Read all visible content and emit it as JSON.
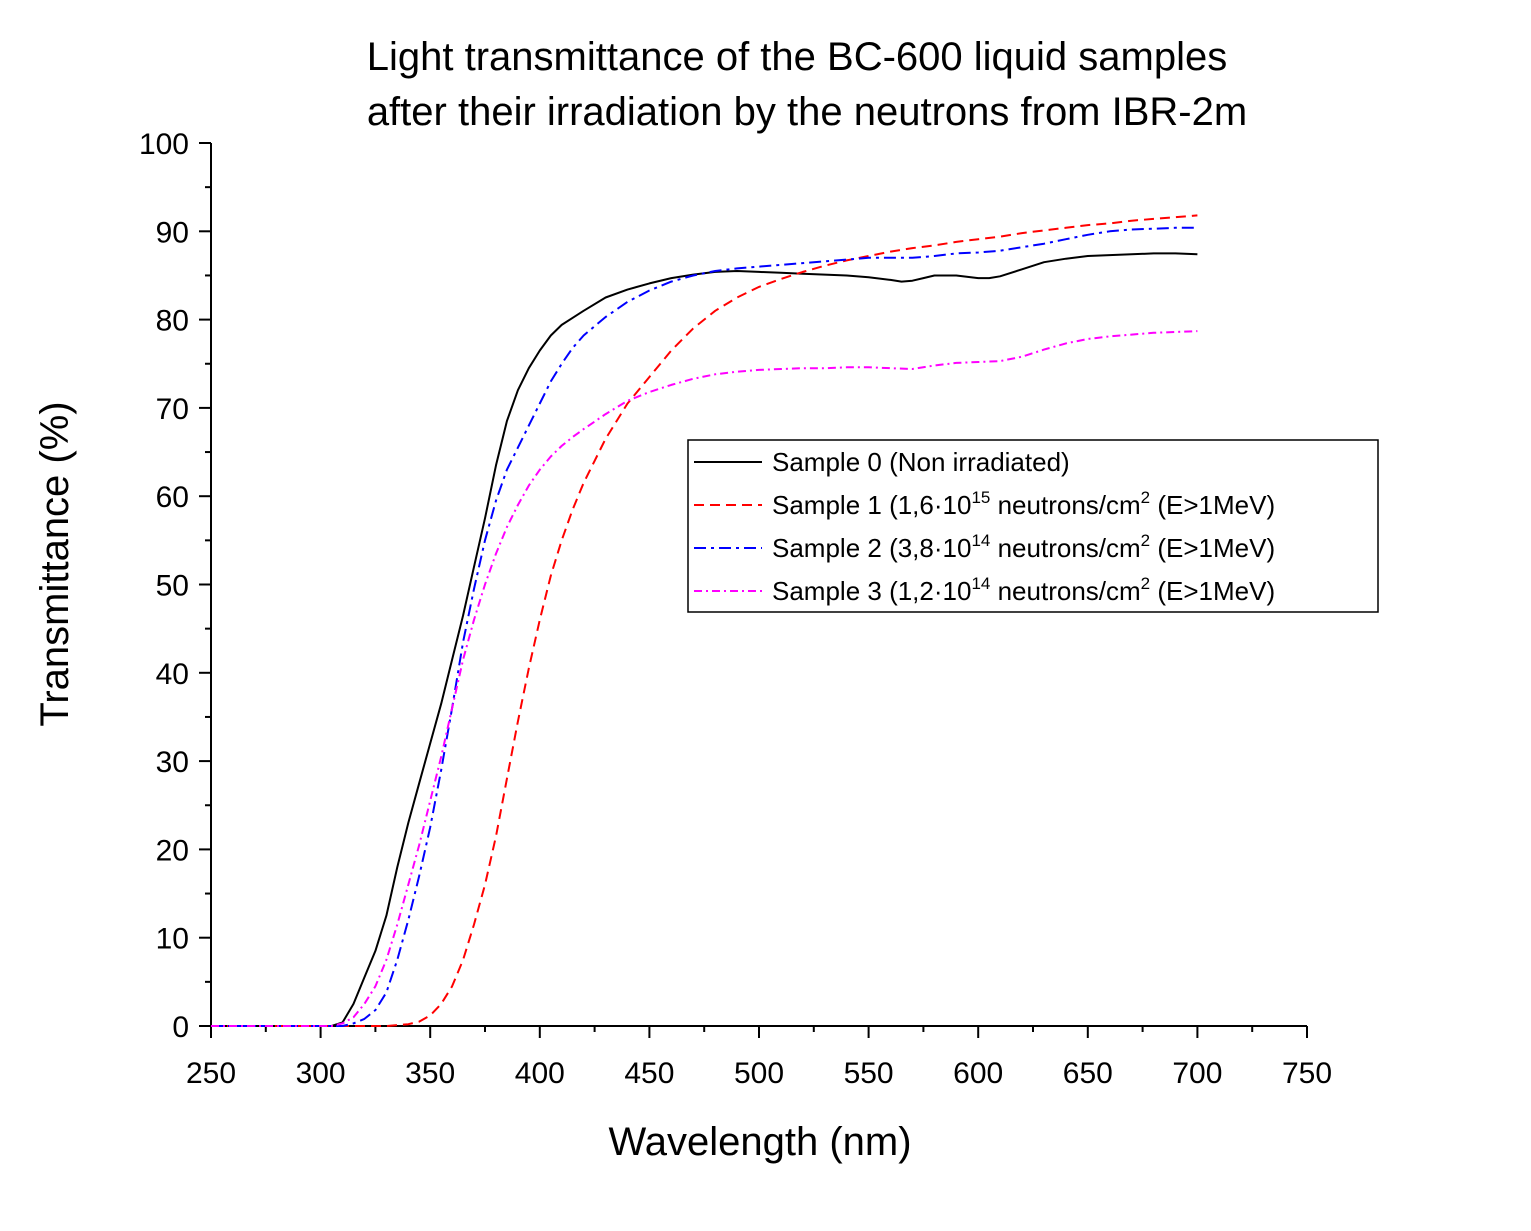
{
  "chart_data": {
    "type": "line",
    "title": [
      "Light transmittance of the BC-600 liquid samples",
      "after their irradiation by the neutrons from IBR-2m"
    ],
    "xlabel": "Wavelength (nm)",
    "ylabel": "Transmittance (%)",
    "xlim": [
      250,
      750
    ],
    "ylim": [
      0,
      100
    ],
    "xticks": [
      250,
      300,
      350,
      400,
      450,
      500,
      550,
      600,
      650,
      700,
      750
    ],
    "yticks": [
      0,
      10,
      20,
      30,
      40,
      50,
      60,
      70,
      80,
      90,
      100
    ],
    "grid": false,
    "legend_position": "center-right",
    "series": [
      {
        "name": "Sample 0 (Non irradiated)",
        "legend": {
          "pre": "Sample 0 (Non irradiated)",
          "sup1": "",
          "mid": "",
          "sup2": "",
          "post": ""
        },
        "color": "#000000",
        "dash": "",
        "x": [
          250,
          305,
          310,
          315,
          320,
          325,
          330,
          335,
          340,
          345,
          350,
          355,
          360,
          365,
          370,
          375,
          380,
          385,
          390,
          395,
          400,
          405,
          410,
          415,
          420,
          430,
          440,
          450,
          460,
          470,
          480,
          490,
          500,
          510,
          520,
          530,
          540,
          550,
          560,
          565,
          570,
          575,
          580,
          590,
          600,
          605,
          610,
          620,
          630,
          640,
          650,
          660,
          670,
          680,
          690,
          700
        ],
        "y": [
          0,
          0,
          0.4,
          2.5,
          5.5,
          8.5,
          12.5,
          18,
          23,
          27.5,
          32,
          36.5,
          41.5,
          46.5,
          52,
          57.5,
          63.5,
          68.5,
          72,
          74.5,
          76.5,
          78.2,
          79.4,
          80.2,
          81,
          82.5,
          83.4,
          84.1,
          84.7,
          85.1,
          85.4,
          85.5,
          85.4,
          85.3,
          85.2,
          85.1,
          85.0,
          84.8,
          84.5,
          84.3,
          84.4,
          84.7,
          85.0,
          85.0,
          84.7,
          84.7,
          84.9,
          85.7,
          86.5,
          86.9,
          87.2,
          87.3,
          87.4,
          87.5,
          87.5,
          87.4
        ]
      },
      {
        "name": "Sample 1 (1,6·10^15 neutrons/cm^2 (E>1MeV)",
        "legend": {
          "pre": "Sample 1 (1,6·10",
          "sup1": "15",
          "mid": " neutrons/cm",
          "sup2": "2",
          "post": " (E>1MeV)"
        },
        "color": "#ff0000",
        "dash": "10,6",
        "x": [
          250,
          330,
          335,
          340,
          345,
          350,
          355,
          360,
          365,
          370,
          375,
          380,
          385,
          390,
          395,
          400,
          405,
          410,
          415,
          420,
          425,
          430,
          440,
          450,
          460,
          470,
          480,
          490,
          500,
          510,
          520,
          530,
          540,
          550,
          560,
          570,
          580,
          590,
          600,
          610,
          620,
          630,
          640,
          650,
          660,
          670,
          680,
          690,
          700
        ],
        "y": [
          0,
          0,
          0.1,
          0.2,
          0.5,
          1.2,
          2.5,
          4.5,
          7.5,
          11.5,
          16,
          21.5,
          28,
          34.5,
          40.5,
          46,
          51,
          55,
          58.5,
          61.5,
          64,
          66.5,
          70.5,
          73.5,
          76.5,
          79,
          81,
          82.5,
          83.7,
          84.6,
          85.4,
          86.1,
          86.7,
          87.2,
          87.7,
          88.1,
          88.4,
          88.8,
          89.1,
          89.4,
          89.8,
          90.1,
          90.4,
          90.7,
          90.9,
          91.2,
          91.4,
          91.6,
          91.8
        ]
      },
      {
        "name": "Sample 2 (3,8·10^14 neutrons/cm^2 (E>1MeV)",
        "legend": {
          "pre": "Sample 2 (3,8·10",
          "sup1": "14",
          "mid": " neutrons/cm",
          "sup2": "2",
          "post": " (E>1MeV)"
        },
        "color": "#0000ff",
        "dash": "12,5,3,5",
        "x": [
          250,
          310,
          315,
          320,
          325,
          330,
          335,
          340,
          345,
          350,
          355,
          360,
          365,
          370,
          375,
          380,
          385,
          390,
          395,
          400,
          405,
          410,
          415,
          420,
          430,
          440,
          450,
          460,
          470,
          480,
          490,
          500,
          510,
          520,
          530,
          540,
          550,
          560,
          570,
          580,
          590,
          600,
          610,
          620,
          630,
          640,
          650,
          660,
          670,
          680,
          690,
          700
        ],
        "y": [
          0,
          0,
          0.3,
          0.8,
          1.8,
          3.8,
          7.5,
          12,
          17,
          22.5,
          29,
          36,
          43.5,
          49.5,
          55,
          59.5,
          63,
          65.5,
          68,
          70.5,
          73,
          75,
          76.8,
          78.2,
          80.3,
          82,
          83.3,
          84.3,
          85.0,
          85.5,
          85.8,
          86.0,
          86.2,
          86.4,
          86.6,
          86.8,
          87.0,
          87.0,
          87.0,
          87.2,
          87.5,
          87.6,
          87.8,
          88.2,
          88.6,
          89.1,
          89.6,
          90.0,
          90.2,
          90.3,
          90.4,
          90.4
        ]
      },
      {
        "name": "Sample 3 (1,2·10^14 neutrons/cm^2 (E>1MeV)",
        "legend": {
          "pre": "Sample 3 (1,2·10",
          "sup1": "14",
          "mid": " neutrons/cm",
          "sup2": "2",
          "post": " (E>1MeV)"
        },
        "color": "#ff00ff",
        "dash": "8,4,2,4",
        "x": [
          250,
          305,
          310,
          315,
          320,
          325,
          330,
          335,
          340,
          345,
          350,
          355,
          360,
          365,
          370,
          375,
          380,
          385,
          390,
          395,
          400,
          405,
          410,
          415,
          420,
          430,
          440,
          450,
          460,
          470,
          480,
          490,
          500,
          510,
          520,
          530,
          540,
          550,
          560,
          570,
          580,
          590,
          600,
          610,
          620,
          630,
          640,
          650,
          660,
          670,
          680,
          690,
          700
        ],
        "y": [
          0,
          0,
          0.3,
          1.0,
          2.5,
          4.5,
          7.5,
          11.5,
          16,
          20.5,
          25.5,
          30.5,
          36,
          41.5,
          46,
          50,
          53.5,
          56.5,
          59,
          61.2,
          63,
          64.5,
          65.7,
          66.7,
          67.6,
          69.3,
          70.8,
          71.8,
          72.6,
          73.3,
          73.8,
          74.1,
          74.3,
          74.4,
          74.5,
          74.5,
          74.6,
          74.6,
          74.5,
          74.4,
          74.8,
          75.1,
          75.2,
          75.3,
          75.8,
          76.6,
          77.3,
          77.8,
          78.1,
          78.3,
          78.5,
          78.6,
          78.7
        ]
      }
    ]
  }
}
